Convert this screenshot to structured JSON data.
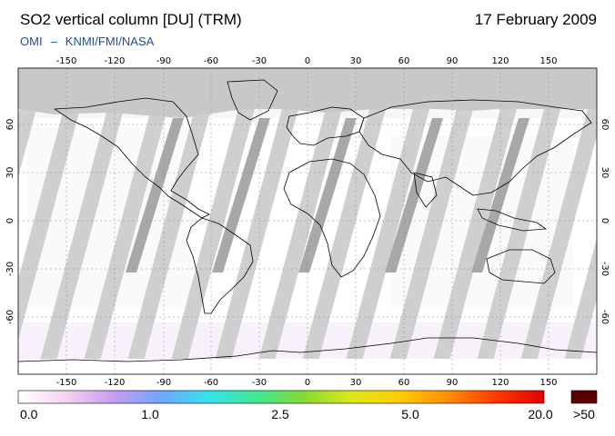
{
  "title": "SO2 vertical column [DU] (TRM)",
  "date": "17 February 2009",
  "credit": {
    "instrument": "OMI",
    "separator": "–",
    "provider": "KNMI/FMI/NASA"
  },
  "map": {
    "projection": "equirectangular",
    "lon_ticks": [
      "-150",
      "-120",
      "-90",
      "-60",
      "-30",
      "0",
      "30",
      "60",
      "90",
      "120",
      "150"
    ],
    "lat_ticks": [
      "60",
      "30",
      "0",
      "-30",
      "-60"
    ],
    "colors": {
      "ocean": "#ffffff",
      "no_data": "#c8c8c8",
      "overlap_swath": "#a9a9a9",
      "coastline": "#000000",
      "grid": "#9a9a9a"
    }
  },
  "colorbar": {
    "labels": [
      "0.0",
      "1.0",
      "2.5",
      "5.0",
      "20.0",
      ">50"
    ],
    "stops": [
      "#ffffff",
      "#f5d2f0",
      "#c69cf0",
      "#6fa6ff",
      "#35e3ee",
      "#3fe890",
      "#86dc2e",
      "#dfe71a",
      "#ffcc00",
      "#ff8c00",
      "#ff3a00",
      "#e00000"
    ],
    "overflow_color": "#5a0000"
  }
}
